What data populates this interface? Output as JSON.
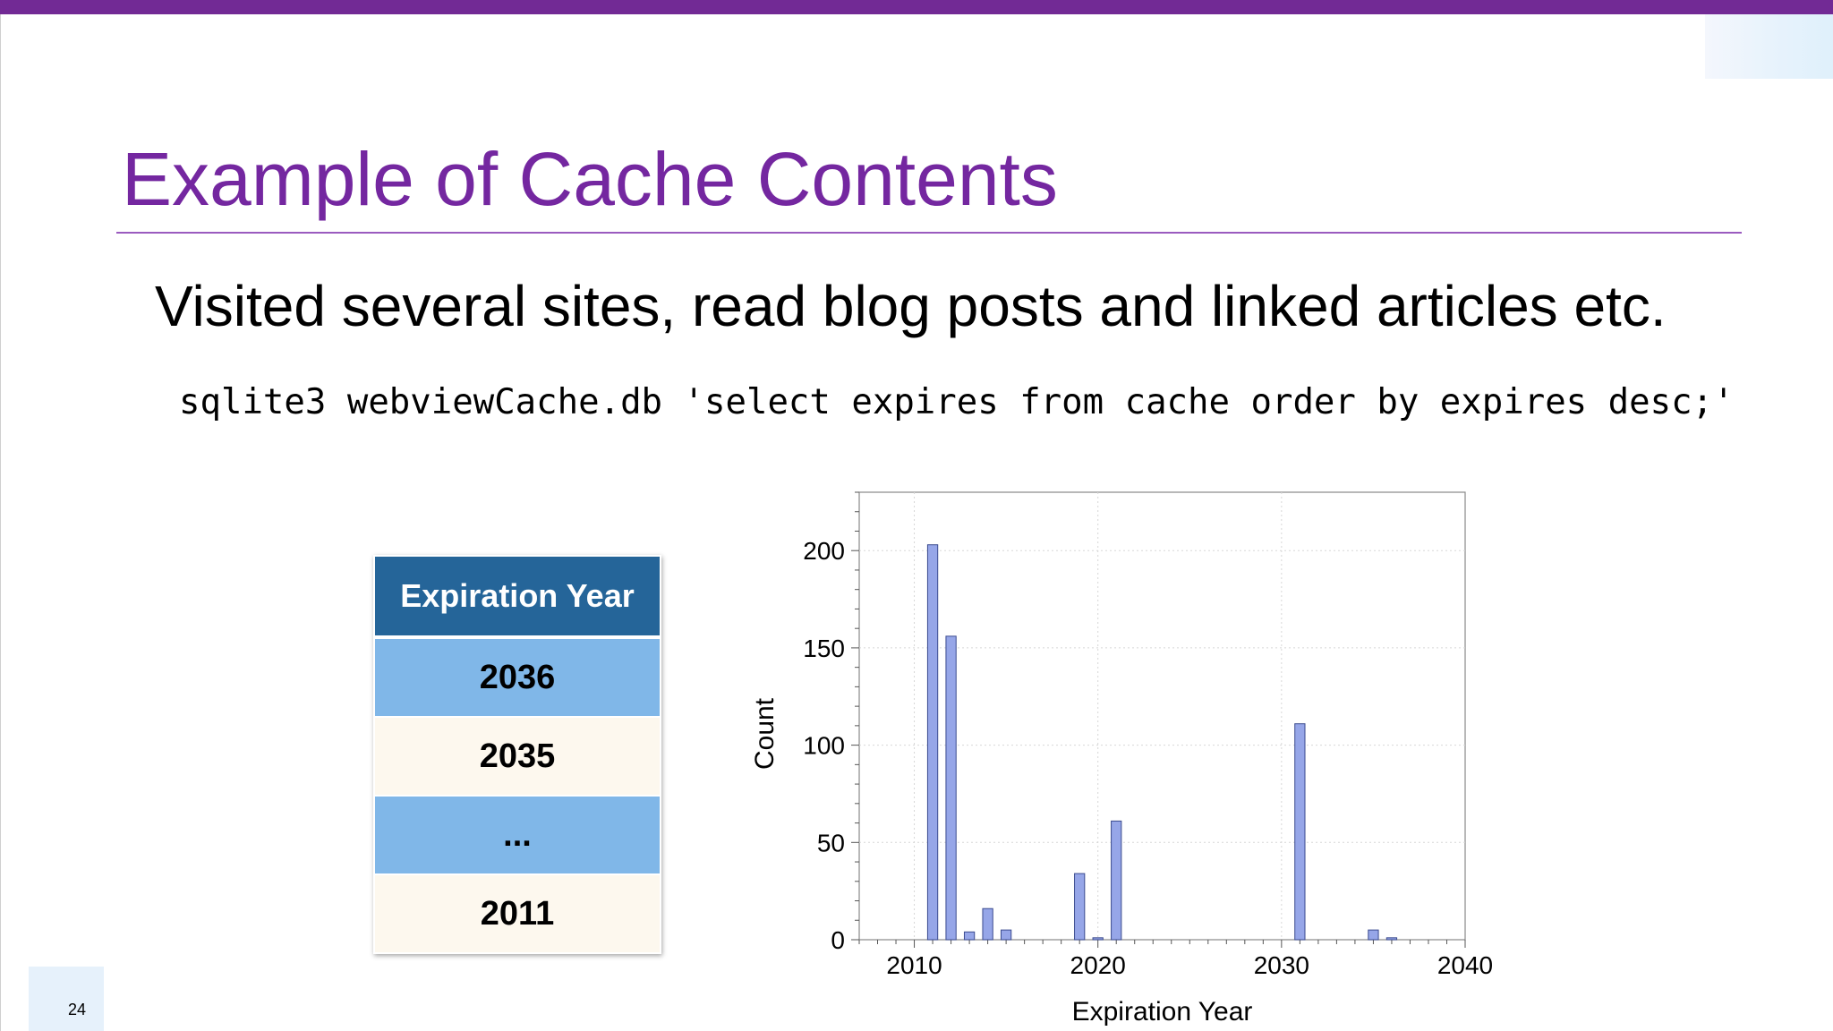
{
  "slide": {
    "title": "Example of Cache Contents",
    "subtitle": "Visited several sites, read blog posts and linked articles etc.",
    "command": "sqlite3 webviewCache.db 'select expires from cache order by expires desc;'",
    "page_number": "24",
    "accent_color": "#722a95"
  },
  "table": {
    "header": "Expiration Year",
    "rows": [
      "2036",
      "2035",
      "...",
      "2011"
    ],
    "header_color": "#256599",
    "row_colors": [
      "#80b7e8",
      "#fdf8ee"
    ]
  },
  "chart_data": {
    "type": "bar",
    "title": "",
    "xlabel": "Expiration Year",
    "ylabel": "Count",
    "xlim": [
      2007,
      2040
    ],
    "ylim": [
      0,
      230
    ],
    "xticks": [
      2010,
      2020,
      2030,
      2040
    ],
    "yticks": [
      0,
      50,
      100,
      150,
      200
    ],
    "grid": true,
    "bar_color": "#96a6e8",
    "bar_edge_color": "#3b4b8f",
    "x": [
      2011,
      2012,
      2013,
      2014,
      2015,
      2019,
      2020,
      2021,
      2031,
      2035,
      2036
    ],
    "values": [
      203,
      156,
      4,
      16,
      5,
      34,
      1,
      61,
      111,
      5,
      1
    ]
  }
}
